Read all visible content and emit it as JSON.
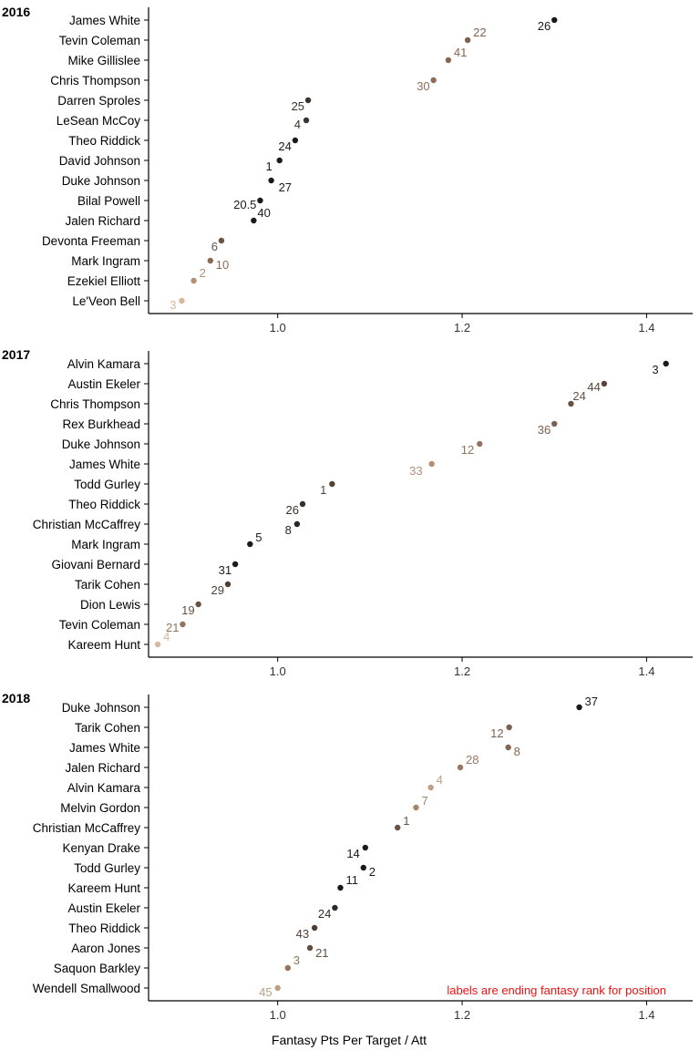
{
  "chart_data": {
    "type": "scatter",
    "xlabel": "Fantasy Pts Per Target / Att",
    "xlim": [
      0.86,
      1.45
    ],
    "xticks": [
      1.0,
      1.2,
      1.4
    ],
    "xtick_labels": [
      "1.0",
      "1.2",
      "1.4"
    ],
    "note": "labels are ending fantasy rank for position",
    "note_color": "#ee1111",
    "color_scale": {
      "low_rank": "#1a1a1a",
      "mid_rank": "#8b6a55",
      "high_rank": "#f0d2b6"
    },
    "panels": [
      {
        "title": "2016",
        "points": [
          {
            "player": "James White",
            "x": 1.3,
            "label": "26"
          },
          {
            "player": "Tevin Coleman",
            "x": 1.206,
            "label": "22"
          },
          {
            "player": "Mike Gillislee",
            "x": 1.185,
            "label": "41"
          },
          {
            "player": "Chris Thompson",
            "x": 1.169,
            "label": "30"
          },
          {
            "player": "Darren Sproles",
            "x": 1.033,
            "label": "25"
          },
          {
            "player": "LeSean McCoy",
            "x": 1.031,
            "label": "4"
          },
          {
            "player": "Theo Riddick",
            "x": 1.019,
            "label": "24"
          },
          {
            "player": "David Johnson",
            "x": 1.002,
            "label": "1"
          },
          {
            "player": "Duke Johnson",
            "x": 0.993,
            "label": "27"
          },
          {
            "player": "Bilal Powell",
            "x": 0.981,
            "label": "20.5"
          },
          {
            "player": "Jalen Richard",
            "x": 0.974,
            "label": "40"
          },
          {
            "player": "Devonta Freeman",
            "x": 0.939,
            "label": "6"
          },
          {
            "player": "Mark Ingram",
            "x": 0.927,
            "label": "10"
          },
          {
            "player": "Ezekiel Elliott",
            "x": 0.909,
            "label": "2"
          },
          {
            "player": "Le'Veon Bell",
            "x": 0.896,
            "label": "3"
          }
        ]
      },
      {
        "title": "2017",
        "points": [
          {
            "player": "Alvin Kamara",
            "x": 1.421,
            "label": "3"
          },
          {
            "player": "Austin Ekeler",
            "x": 1.354,
            "label": "44"
          },
          {
            "player": "Chris Thompson",
            "x": 1.318,
            "label": "24"
          },
          {
            "player": "Rex Burkhead",
            "x": 1.3,
            "label": "36"
          },
          {
            "player": "Duke Johnson",
            "x": 1.219,
            "label": "12"
          },
          {
            "player": "James White",
            "x": 1.167,
            "label": "33"
          },
          {
            "player": "Todd Gurley",
            "x": 1.059,
            "label": "1"
          },
          {
            "player": "Theo Riddick",
            "x": 1.027,
            "label": "26"
          },
          {
            "player": "Christian McCaffrey",
            "x": 1.021,
            "label": "8"
          },
          {
            "player": "Mark Ingram",
            "x": 0.97,
            "label": "5"
          },
          {
            "player": "Giovani Bernard",
            "x": 0.954,
            "label": "31"
          },
          {
            "player": "Tarik Cohen",
            "x": 0.946,
            "label": "29"
          },
          {
            "player": "Dion Lewis",
            "x": 0.914,
            "label": "19"
          },
          {
            "player": "Tevin Coleman",
            "x": 0.897,
            "label": "21"
          },
          {
            "player": "Kareem Hunt",
            "x": 0.87,
            "label": "4"
          }
        ]
      },
      {
        "title": "2018",
        "points": [
          {
            "player": "Duke Johnson",
            "x": 1.327,
            "label": "37"
          },
          {
            "player": "Tarik Cohen",
            "x": 1.251,
            "label": "12"
          },
          {
            "player": "James White",
            "x": 1.25,
            "label": "8"
          },
          {
            "player": "Jalen Richard",
            "x": 1.198,
            "label": "28"
          },
          {
            "player": "Alvin Kamara",
            "x": 1.166,
            "label": "4"
          },
          {
            "player": "Melvin Gordon",
            "x": 1.15,
            "label": "7"
          },
          {
            "player": "Christian McCaffrey",
            "x": 1.13,
            "label": "1"
          },
          {
            "player": "Kenyan Drake",
            "x": 1.095,
            "label": "14"
          },
          {
            "player": "Todd Gurley",
            "x": 1.093,
            "label": "2"
          },
          {
            "player": "Kareem Hunt",
            "x": 1.068,
            "label": "11"
          },
          {
            "player": "Austin Ekeler",
            "x": 1.062,
            "label": "24"
          },
          {
            "player": "Theo Riddick",
            "x": 1.04,
            "label": "43"
          },
          {
            "player": "Aaron Jones",
            "x": 1.035,
            "label": "21"
          },
          {
            "player": "Saquon Barkley",
            "x": 1.011,
            "label": "3"
          },
          {
            "player": "Wendell Smallwood",
            "x": 1.0,
            "label": "45"
          }
        ]
      }
    ]
  }
}
